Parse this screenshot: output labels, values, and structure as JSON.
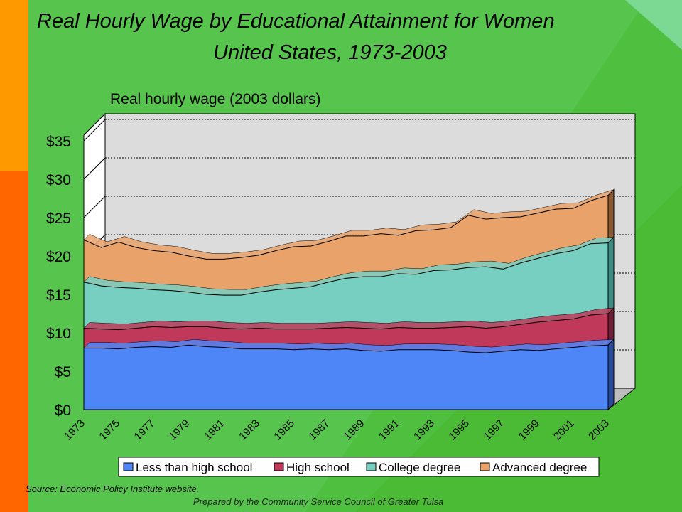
{
  "title": "Real Hourly Wage by Educational Attainment for Women",
  "subtitle": "United States, 1973-2003",
  "source": "Source:  Economic Policy Institute website.",
  "prepared_by": "Prepared by the Community Service Council of Greater Tulsa",
  "colors": {
    "background": "#4fbf3f",
    "left_stripe_top": "#ff9900",
    "left_stripe_bottom": "#ff6600",
    "plot_back": "#dcdcdc",
    "less_than_hs": "#4f86f7",
    "high_school": "#c0395a",
    "college": "#77cfc1",
    "advanced": "#e9a26a"
  },
  "chart_data": {
    "type": "area",
    "stacked": true,
    "ylabel": "Real hourly wage (2003 dollars)",
    "ylim": [
      0,
      35
    ],
    "ytick_labels": [
      "$0",
      "$5",
      "$10",
      "$15",
      "$20",
      "$25",
      "$30",
      "$35"
    ],
    "ytick_values": [
      0,
      5,
      10,
      15,
      20,
      25,
      30,
      35
    ],
    "x": [
      1973,
      1974,
      1975,
      1976,
      1977,
      1978,
      1979,
      1980,
      1981,
      1982,
      1983,
      1984,
      1985,
      1986,
      1987,
      1988,
      1989,
      1990,
      1991,
      1992,
      1993,
      1994,
      1995,
      1996,
      1997,
      1998,
      1999,
      2000,
      2001,
      2002,
      2003
    ],
    "xtick_labels": [
      "1973",
      "1975",
      "1977",
      "1979",
      "1981",
      "1983",
      "1985",
      "1987",
      "1989",
      "1991",
      "1993",
      "1995",
      "1997",
      "1999",
      "2001",
      "2003"
    ],
    "gridlines": "horizontal",
    "legend_position": "bottom",
    "series": [
      {
        "name": "Less than high school",
        "values": [
          8.0,
          8.0,
          7.9,
          8.1,
          8.2,
          8.1,
          8.4,
          8.2,
          8.1,
          7.9,
          7.9,
          7.9,
          7.8,
          7.9,
          7.8,
          7.9,
          7.7,
          7.6,
          7.8,
          7.8,
          7.8,
          7.7,
          7.5,
          7.4,
          7.6,
          7.8,
          7.7,
          7.9,
          8.1,
          8.3,
          8.4
        ]
      },
      {
        "name": "High school",
        "values": [
          10.6,
          10.5,
          10.4,
          10.6,
          10.8,
          10.7,
          10.8,
          10.8,
          10.6,
          10.5,
          10.6,
          10.5,
          10.5,
          10.5,
          10.6,
          10.7,
          10.6,
          10.5,
          10.7,
          10.6,
          10.6,
          10.7,
          10.8,
          10.6,
          10.8,
          11.1,
          11.4,
          11.6,
          11.8,
          12.3,
          12.5
        ]
      },
      {
        "name": "College degree",
        "values": [
          16.6,
          16.1,
          15.9,
          15.8,
          15.6,
          15.5,
          15.3,
          15.0,
          14.9,
          14.9,
          15.3,
          15.6,
          15.8,
          16.0,
          16.6,
          17.1,
          17.3,
          17.3,
          17.7,
          17.6,
          18.1,
          18.2,
          18.5,
          18.6,
          18.3,
          19.1,
          19.7,
          20.3,
          20.7,
          21.6,
          21.7
        ]
      },
      {
        "name": "Advanced degree",
        "values": [
          22.1,
          21.1,
          21.8,
          21.1,
          20.7,
          20.5,
          20.0,
          19.6,
          19.6,
          19.8,
          20.1,
          20.7,
          21.2,
          21.3,
          21.9,
          22.6,
          22.6,
          22.9,
          22.7,
          23.3,
          23.4,
          23.7,
          25.3,
          24.8,
          25.0,
          25.1,
          25.6,
          26.1,
          26.2,
          27.2,
          27.9
        ]
      }
    ]
  }
}
